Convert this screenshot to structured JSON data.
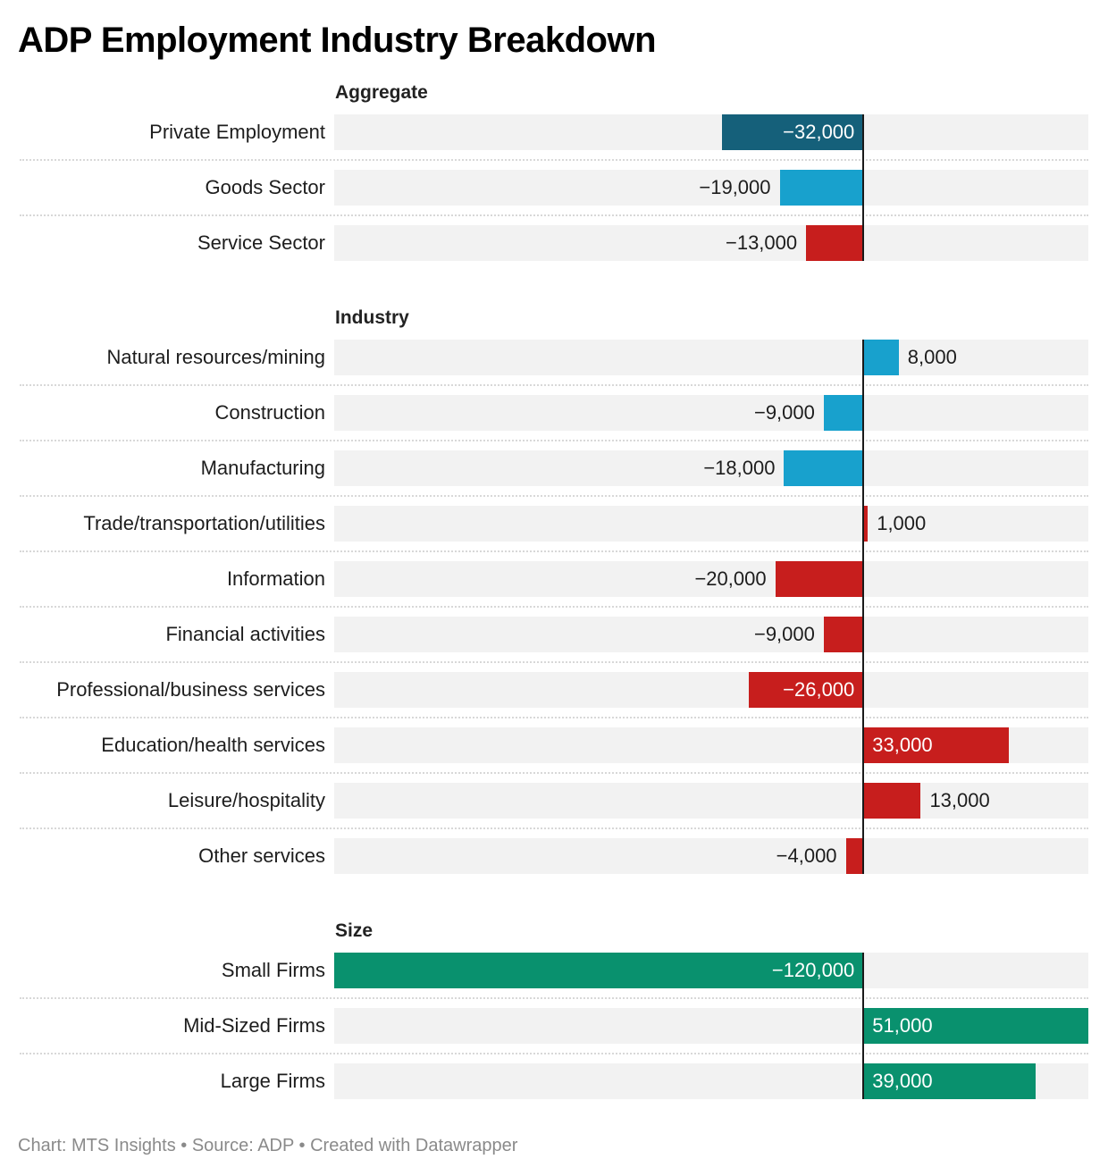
{
  "title": "ADP Employment Industry Breakdown",
  "footer": "Chart: MTS Insights • Source: ADP • Created with Datawrapper",
  "colors": {
    "dark_teal": "#15607a",
    "blue": "#18a1cd",
    "red": "#c71e1d",
    "green": "#09916e",
    "row_background": "#f2f2f2"
  },
  "chart_data": {
    "type": "bar",
    "orientation": "horizontal",
    "title": "ADP Employment Industry Breakdown",
    "xlabel": "",
    "ylabel": "",
    "xlim": [
      -120000,
      51000
    ],
    "grid": false,
    "groups": [
      {
        "name": "Aggregate",
        "rows": [
          {
            "label": "Private Employment",
            "value": -32000,
            "display": "−32,000",
            "color": "#15607a"
          },
          {
            "label": "Goods Sector",
            "value": -19000,
            "display": "−19,000",
            "color": "#18a1cd"
          },
          {
            "label": "Service Sector",
            "value": -13000,
            "display": "−13,000",
            "color": "#c71e1d"
          }
        ]
      },
      {
        "name": "Industry",
        "rows": [
          {
            "label": "Natural resources/mining",
            "value": 8000,
            "display": "8,000",
            "color": "#18a1cd"
          },
          {
            "label": "Construction",
            "value": -9000,
            "display": "−9,000",
            "color": "#18a1cd"
          },
          {
            "label": "Manufacturing",
            "value": -18000,
            "display": "−18,000",
            "color": "#18a1cd"
          },
          {
            "label": "Trade/transportation/utilities",
            "value": 1000,
            "display": "1,000",
            "color": "#c71e1d"
          },
          {
            "label": "Information",
            "value": -20000,
            "display": "−20,000",
            "color": "#c71e1d"
          },
          {
            "label": "Financial activities",
            "value": -9000,
            "display": "−9,000",
            "color": "#c71e1d"
          },
          {
            "label": "Professional/business services",
            "value": -26000,
            "display": "−26,000",
            "color": "#c71e1d"
          },
          {
            "label": "Education/health services",
            "value": 33000,
            "display": "33,000",
            "color": "#c71e1d"
          },
          {
            "label": "Leisure/hospitality",
            "value": 13000,
            "display": "13,000",
            "color": "#c71e1d"
          },
          {
            "label": "Other services",
            "value": -4000,
            "display": "−4,000",
            "color": "#c71e1d"
          }
        ]
      },
      {
        "name": "Size",
        "rows": [
          {
            "label": "Small Firms",
            "value": -120000,
            "display": "−120,000",
            "color": "#09916e"
          },
          {
            "label": "Mid-Sized Firms",
            "value": 51000,
            "display": "51,000",
            "color": "#09916e"
          },
          {
            "label": "Large Firms",
            "value": 39000,
            "display": "39,000",
            "color": "#09916e"
          }
        ]
      }
    ]
  }
}
